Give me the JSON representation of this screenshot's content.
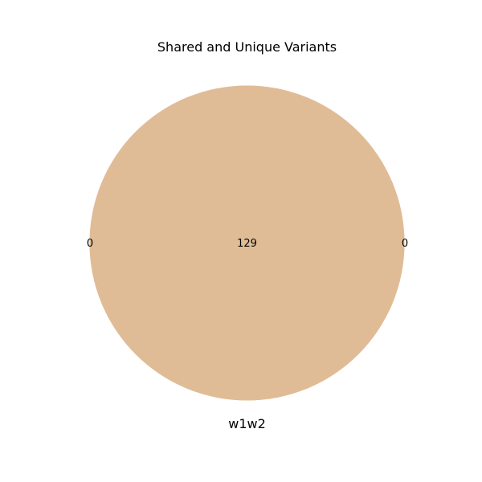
{
  "chart_data": {
    "type": "venn",
    "title": "Shared and Unique Variants",
    "sets": [
      "w1",
      "w2"
    ],
    "set_labels": [
      "w1",
      "w2"
    ],
    "regions": {
      "w1_only": 0,
      "w2_only": 0,
      "shared": 129
    },
    "colors": {
      "w1": "#d2a679",
      "w2": "#e6c9a6",
      "overlap": "#e0bc96"
    }
  }
}
